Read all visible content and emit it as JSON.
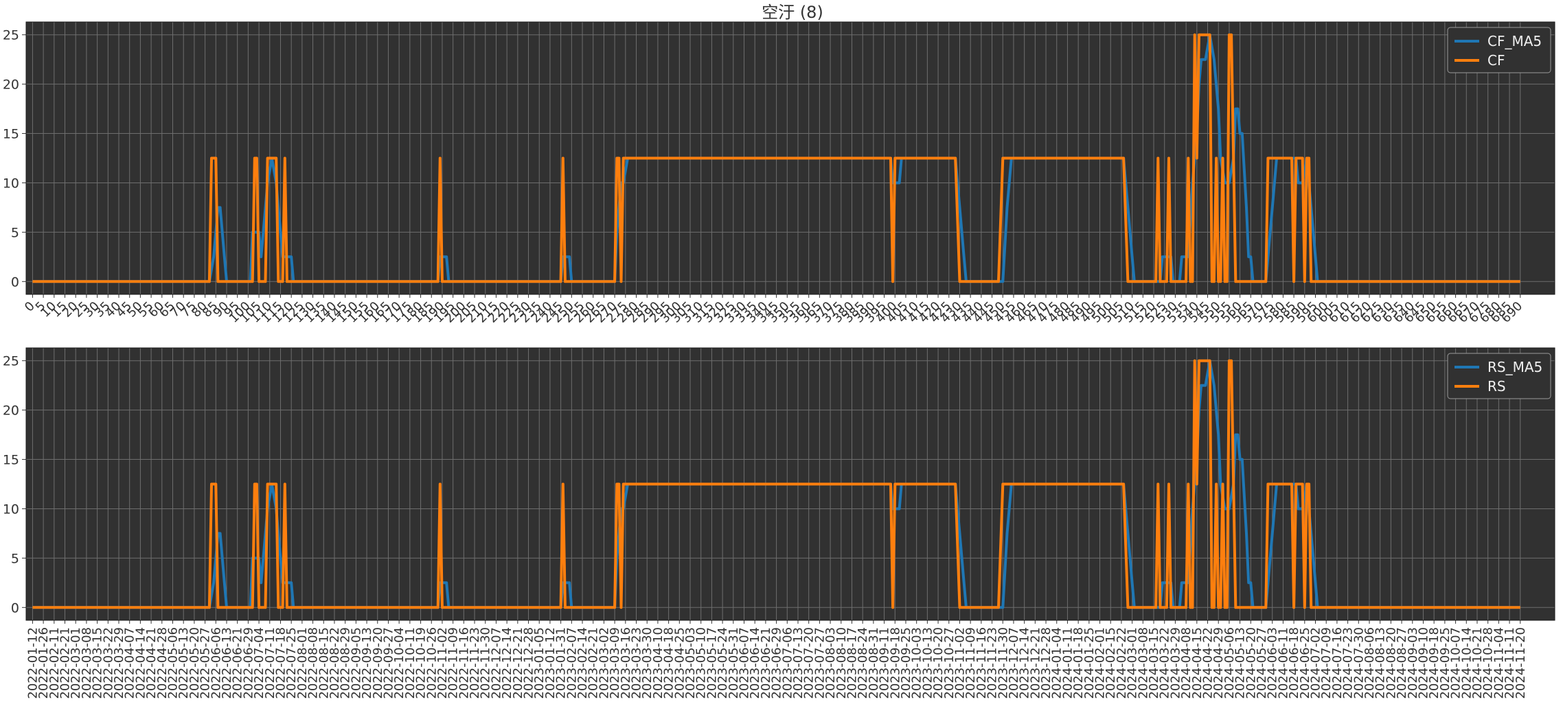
{
  "title": "空汙 (8)",
  "colors": {
    "ma": "#1f77b4",
    "raw": "#ff7f0e",
    "plot_bg": "#313131",
    "grid": "#6e6e6e",
    "text": "#333333"
  },
  "chart_data": [
    {
      "type": "line",
      "title": "空汙 (8)",
      "x_ticks_step": 5,
      "x_range": [
        0,
        690
      ],
      "ylim": [
        -1.3,
        26.3
      ],
      "yticks": [
        0,
        5,
        10,
        15,
        20,
        25
      ],
      "grid": true,
      "legend": "top-right",
      "series": [
        {
          "name": "CF_MA5",
          "color": "#1f77b4",
          "points": [
            [
              0,
              0
            ],
            [
              82,
              0
            ],
            [
              84,
              2.5
            ],
            [
              85,
              5
            ],
            [
              86,
              7.5
            ],
            [
              87,
              7.5
            ],
            [
              89,
              2.5
            ],
            [
              90,
              0
            ],
            [
              101,
              0
            ],
            [
              102,
              5
            ],
            [
              105,
              5
            ],
            [
              106,
              2.5
            ],
            [
              107,
              5
            ],
            [
              109,
              10
            ],
            [
              111,
              12.5
            ],
            [
              113,
              10
            ],
            [
              114,
              7.5
            ],
            [
              116,
              2.5
            ],
            [
              120,
              2.5
            ],
            [
              121,
              0
            ],
            [
              188,
              0
            ],
            [
              189,
              2.5
            ],
            [
              192,
              2.5
            ],
            [
              193,
              0
            ],
            [
              245,
              0
            ],
            [
              246,
              2.5
            ],
            [
              249,
              2.5
            ],
            [
              250,
              0
            ],
            [
              270,
              0
            ],
            [
              271,
              5
            ],
            [
              273,
              10
            ],
            [
              274,
              10
            ],
            [
              276,
              12.5
            ],
            [
              398,
              12.5
            ],
            [
              399,
              10
            ],
            [
              402,
              10
            ],
            [
              403,
              12.5
            ],
            [
              428,
              12.5
            ],
            [
              430,
              7.5
            ],
            [
              432,
              2.5
            ],
            [
              433,
              0
            ],
            [
              450,
              0
            ],
            [
              452,
              7.5
            ],
            [
              454,
              12.5
            ],
            [
              506,
              12.5
            ],
            [
              508,
              7.5
            ],
            [
              510,
              2.5
            ],
            [
              511,
              0
            ],
            [
              523,
              0
            ],
            [
              524,
              2.5
            ],
            [
              527,
              2.5
            ],
            [
              528,
              2.5
            ],
            [
              529,
              0
            ],
            [
              532,
              0
            ],
            [
              533,
              2.5
            ],
            [
              536,
              2.5
            ],
            [
              538,
              10
            ],
            [
              540,
              15
            ],
            [
              541,
              20
            ],
            [
              542,
              22.5
            ],
            [
              544,
              22.5
            ],
            [
              546,
              25
            ],
            [
              548,
              22.5
            ],
            [
              550,
              17.5
            ],
            [
              551,
              12.5
            ],
            [
              553,
              10
            ],
            [
              555,
              10
            ],
            [
              557,
              12.5
            ],
            [
              558,
              17.5
            ],
            [
              559,
              17.5
            ],
            [
              560,
              15
            ],
            [
              561,
              15
            ],
            [
              563,
              7.5
            ],
            [
              564,
              2.5
            ],
            [
              565,
              2.5
            ],
            [
              566,
              0
            ],
            [
              572,
              0
            ],
            [
              574,
              5
            ],
            [
              577,
              12.5
            ],
            [
              586,
              12.5
            ],
            [
              587,
              10
            ],
            [
              589,
              10
            ],
            [
              591,
              12.5
            ],
            [
              593,
              7.5
            ],
            [
              595,
              2.5
            ],
            [
              596,
              0
            ],
            [
              690,
              0
            ]
          ]
        },
        {
          "name": "CF",
          "color": "#ff7f0e",
          "points": [
            [
              0,
              0
            ],
            [
              82,
              0
            ],
            [
              83,
              12.5
            ],
            [
              85,
              12.5
            ],
            [
              86,
              0
            ],
            [
              102,
              0
            ],
            [
              103,
              12.5
            ],
            [
              104,
              12.5
            ],
            [
              105,
              0
            ],
            [
              108,
              0
            ],
            [
              109,
              12.5
            ],
            [
              113,
              12.5
            ],
            [
              114,
              0
            ],
            [
              116,
              0
            ],
            [
              117,
              12.5
            ],
            [
              118,
              0
            ],
            [
              188,
              0
            ],
            [
              189,
              12.5
            ],
            [
              190,
              0
            ],
            [
              245,
              0
            ],
            [
              246,
              12.5
            ],
            [
              247,
              0
            ],
            [
              270,
              0
            ],
            [
              271,
              12.5
            ],
            [
              272,
              12.5
            ],
            [
              273,
              0
            ],
            [
              274,
              12.5
            ],
            [
              398,
              12.5
            ],
            [
              399,
              0
            ],
            [
              400,
              12.5
            ],
            [
              428,
              12.5
            ],
            [
              430,
              0
            ],
            [
              448,
              0
            ],
            [
              450,
              12.5
            ],
            [
              506,
              12.5
            ],
            [
              508,
              0
            ],
            [
              521,
              0
            ],
            [
              522,
              12.5
            ],
            [
              523,
              0
            ],
            [
              526,
              0
            ],
            [
              527,
              12.5
            ],
            [
              528,
              0
            ],
            [
              535,
              0
            ],
            [
              536,
              12.5
            ],
            [
              537,
              0
            ],
            [
              538,
              0
            ],
            [
              539,
              25
            ],
            [
              540,
              12.5
            ],
            [
              541,
              25
            ],
            [
              546,
              25
            ],
            [
              547,
              0
            ],
            [
              548,
              0
            ],
            [
              549,
              12.5
            ],
            [
              550,
              0
            ],
            [
              551,
              0
            ],
            [
              552,
              12.5
            ],
            [
              553,
              0
            ],
            [
              554,
              0
            ],
            [
              555,
              25
            ],
            [
              556,
              25
            ],
            [
              557,
              12.5
            ],
            [
              558,
              0
            ],
            [
              572,
              0
            ],
            [
              573,
              12.5
            ],
            [
              584,
              12.5
            ],
            [
              585,
              0
            ],
            [
              586,
              12.5
            ],
            [
              589,
              12.5
            ],
            [
              590,
              0
            ],
            [
              591,
              12.5
            ],
            [
              592,
              12.5
            ],
            [
              593,
              0
            ],
            [
              690,
              0
            ]
          ]
        }
      ]
    },
    {
      "type": "line",
      "x_ticks": [
        "2022-01-12",
        "2022-01-26",
        "2022-02-11",
        "2022-02-21",
        "2022-03-01",
        "2022-03-08",
        "2022-03-15",
        "2022-03-22",
        "2022-03-29",
        "2022-04-07",
        "2022-04-14",
        "2022-04-21",
        "2022-04-28",
        "2022-05-06",
        "2022-05-13",
        "2022-05-20",
        "2022-05-27",
        "2022-06-06",
        "2022-06-13",
        "2022-06-21",
        "2022-06-29",
        "2022-07-04",
        "2022-07-11",
        "2022-07-18",
        "2022-07-25",
        "2022-08-01",
        "2022-08-08",
        "2022-08-15",
        "2022-08-22",
        "2022-08-29",
        "2022-09-05",
        "2022-09-13",
        "2022-09-20",
        "2022-09-27",
        "2022-10-04",
        "2022-10-11",
        "2022-10-19",
        "2022-10-26",
        "2022-11-02",
        "2022-11-09",
        "2022-11-16",
        "2022-11-23",
        "2022-11-30",
        "2022-12-07",
        "2022-12-14",
        "2022-12-21",
        "2022-12-28",
        "2023-01-05",
        "2023-01-12",
        "2023-01-31",
        "2023-02-07",
        "2023-02-14",
        "2023-02-21",
        "2023-03-02",
        "2023-03-09",
        "2023-03-16",
        "2023-03-23",
        "2023-03-30",
        "2023-04-10",
        "2023-04-18",
        "2023-04-25",
        "2023-05-03",
        "2023-05-10",
        "2023-05-17",
        "2023-05-24",
        "2023-05-31",
        "2023-06-07",
        "2023-06-14",
        "2023-06-21",
        "2023-06-29",
        "2023-07-06",
        "2023-07-13",
        "2023-07-20",
        "2023-07-27",
        "2023-08-03",
        "2023-08-10",
        "2023-08-17",
        "2023-08-24",
        "2023-08-31",
        "2023-09-11",
        "2023-09-18",
        "2023-09-25",
        "2023-10-03",
        "2023-10-13",
        "2023-10-20",
        "2023-10-27",
        "2023-11-02",
        "2023-11-09",
        "2023-11-16",
        "2023-11-23",
        "2023-11-30",
        "2023-12-07",
        "2023-12-14",
        "2023-12-21",
        "2023-12-28",
        "2024-01-04",
        "2024-01-11",
        "2024-01-18",
        "2024-01-25",
        "2024-02-01",
        "2024-02-15",
        "2024-02-22",
        "2024-03-01",
        "2024-03-08",
        "2024-03-15",
        "2024-03-22",
        "2024-03-29",
        "2024-04-08",
        "2024-04-15",
        "2024-04-22",
        "2024-04-29",
        "2024-05-06",
        "2024-05-13",
        "2024-05-20",
        "2024-05-27",
        "2024-06-03",
        "2024-06-11",
        "2024-06-18",
        "2024-06-25",
        "2024-07-02",
        "2024-07-09",
        "2024-07-16",
        "2024-07-23",
        "2024-07-30",
        "2024-08-06",
        "2024-08-13",
        "2024-08-20",
        "2024-08-27",
        "2024-09-03",
        "2024-09-10",
        "2024-09-18",
        "2024-09-25",
        "2024-10-07",
        "2024-10-14",
        "2024-10-21",
        "2024-10-28",
        "2024-11-04",
        "2024-11-11",
        "2024-11-20"
      ],
      "ylim": [
        -1.3,
        26.3
      ],
      "yticks": [
        0,
        5,
        10,
        15,
        20,
        25
      ],
      "grid": true,
      "legend": "top-right",
      "series": [
        {
          "name": "RS_MA5",
          "color": "#1f77b4",
          "same_as_series_of_chart": 0,
          "points_from": "CF_MA5"
        },
        {
          "name": "RS",
          "color": "#ff7f0e",
          "points_from": "CF"
        }
      ]
    }
  ]
}
